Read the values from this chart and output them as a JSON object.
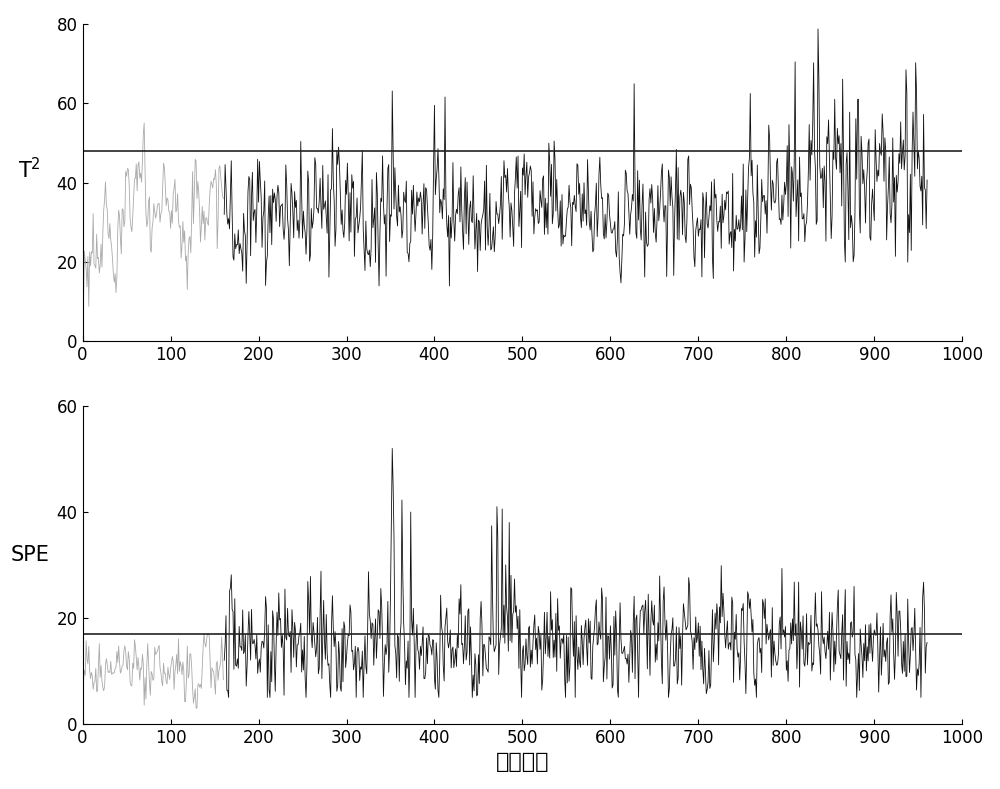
{
  "n_total": 960,
  "n_gray": 160,
  "t2_control_limit": 48,
  "spe_control_limit": 17,
  "t2_ylim": [
    0,
    80
  ],
  "spe_ylim": [
    0,
    60
  ],
  "t2_yticks": [
    0,
    20,
    40,
    60,
    80
  ],
  "spe_yticks": [
    0,
    20,
    40,
    60
  ],
  "xlim": [
    0,
    1000
  ],
  "xticks": [
    0,
    100,
    200,
    300,
    400,
    500,
    600,
    700,
    800,
    900,
    1000
  ],
  "t2_ylabel": "T$^2$",
  "spe_ylabel": "SPE",
  "xlabel": "样本序号",
  "gray_color": "#aaaaaa",
  "black_color": "#111111",
  "control_limit_color": "#222222",
  "linewidth": 0.6,
  "control_linewidth": 1.2
}
